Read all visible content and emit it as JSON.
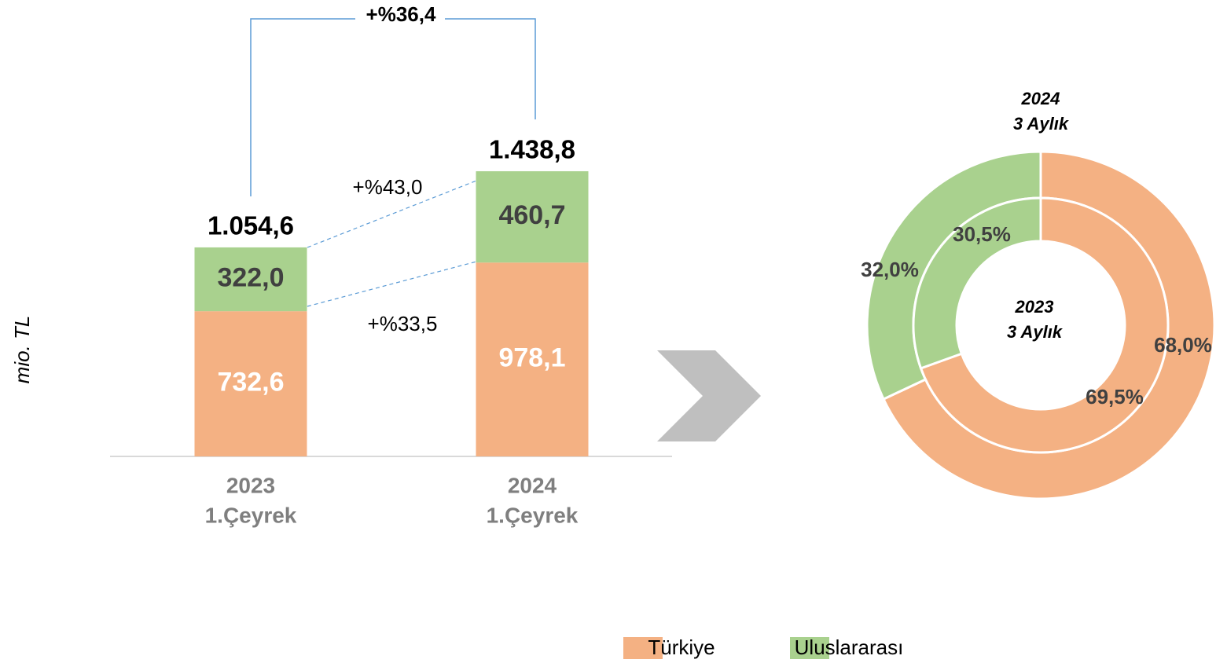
{
  "chart_data": [
    {
      "type": "stacked_bar",
      "y_label": "mio. TL",
      "categories": [
        [
          "2023",
          "1.Çeyrek"
        ],
        [
          "2024",
          "1.Çeyrek"
        ]
      ],
      "series": [
        {
          "name": "Türkiye",
          "color": "#f4b183",
          "label_color": "#ffffff",
          "values": [
            732.6,
            978.1
          ],
          "value_labels": [
            "732,6",
            "978,1"
          ]
        },
        {
          "name": "Uluslararası",
          "color": "#a9d18e",
          "label_color": "#404040",
          "values": [
            322.0,
            460.7
          ],
          "value_labels": [
            "322,0",
            "460,7"
          ]
        }
      ],
      "totals": [
        1054.6,
        1438.8
      ],
      "total_labels": [
        "1.054,6",
        "1.438,8"
      ],
      "ylim": [
        0,
        1600
      ],
      "annotations": {
        "total_growth": "+%36,4",
        "uluslararasi_growth": "+%43,0",
        "turkiye_growth": "+%33,5"
      }
    },
    {
      "type": "donut",
      "categories": [
        "Türkiye",
        "Uluslararası"
      ],
      "colors": [
        "#f4b183",
        "#a9d18e"
      ],
      "outer_title": [
        "2024",
        "3 Aylık"
      ],
      "center_title": [
        "2023",
        "3 Aylık"
      ],
      "rings": [
        {
          "values": [
            68.0,
            32.0
          ],
          "value_labels": [
            "68,0%",
            "32,0%"
          ]
        },
        {
          "values": [
            69.5,
            30.5
          ],
          "value_labels": [
            "69,5%",
            "30,5%"
          ]
        }
      ]
    }
  ]
}
